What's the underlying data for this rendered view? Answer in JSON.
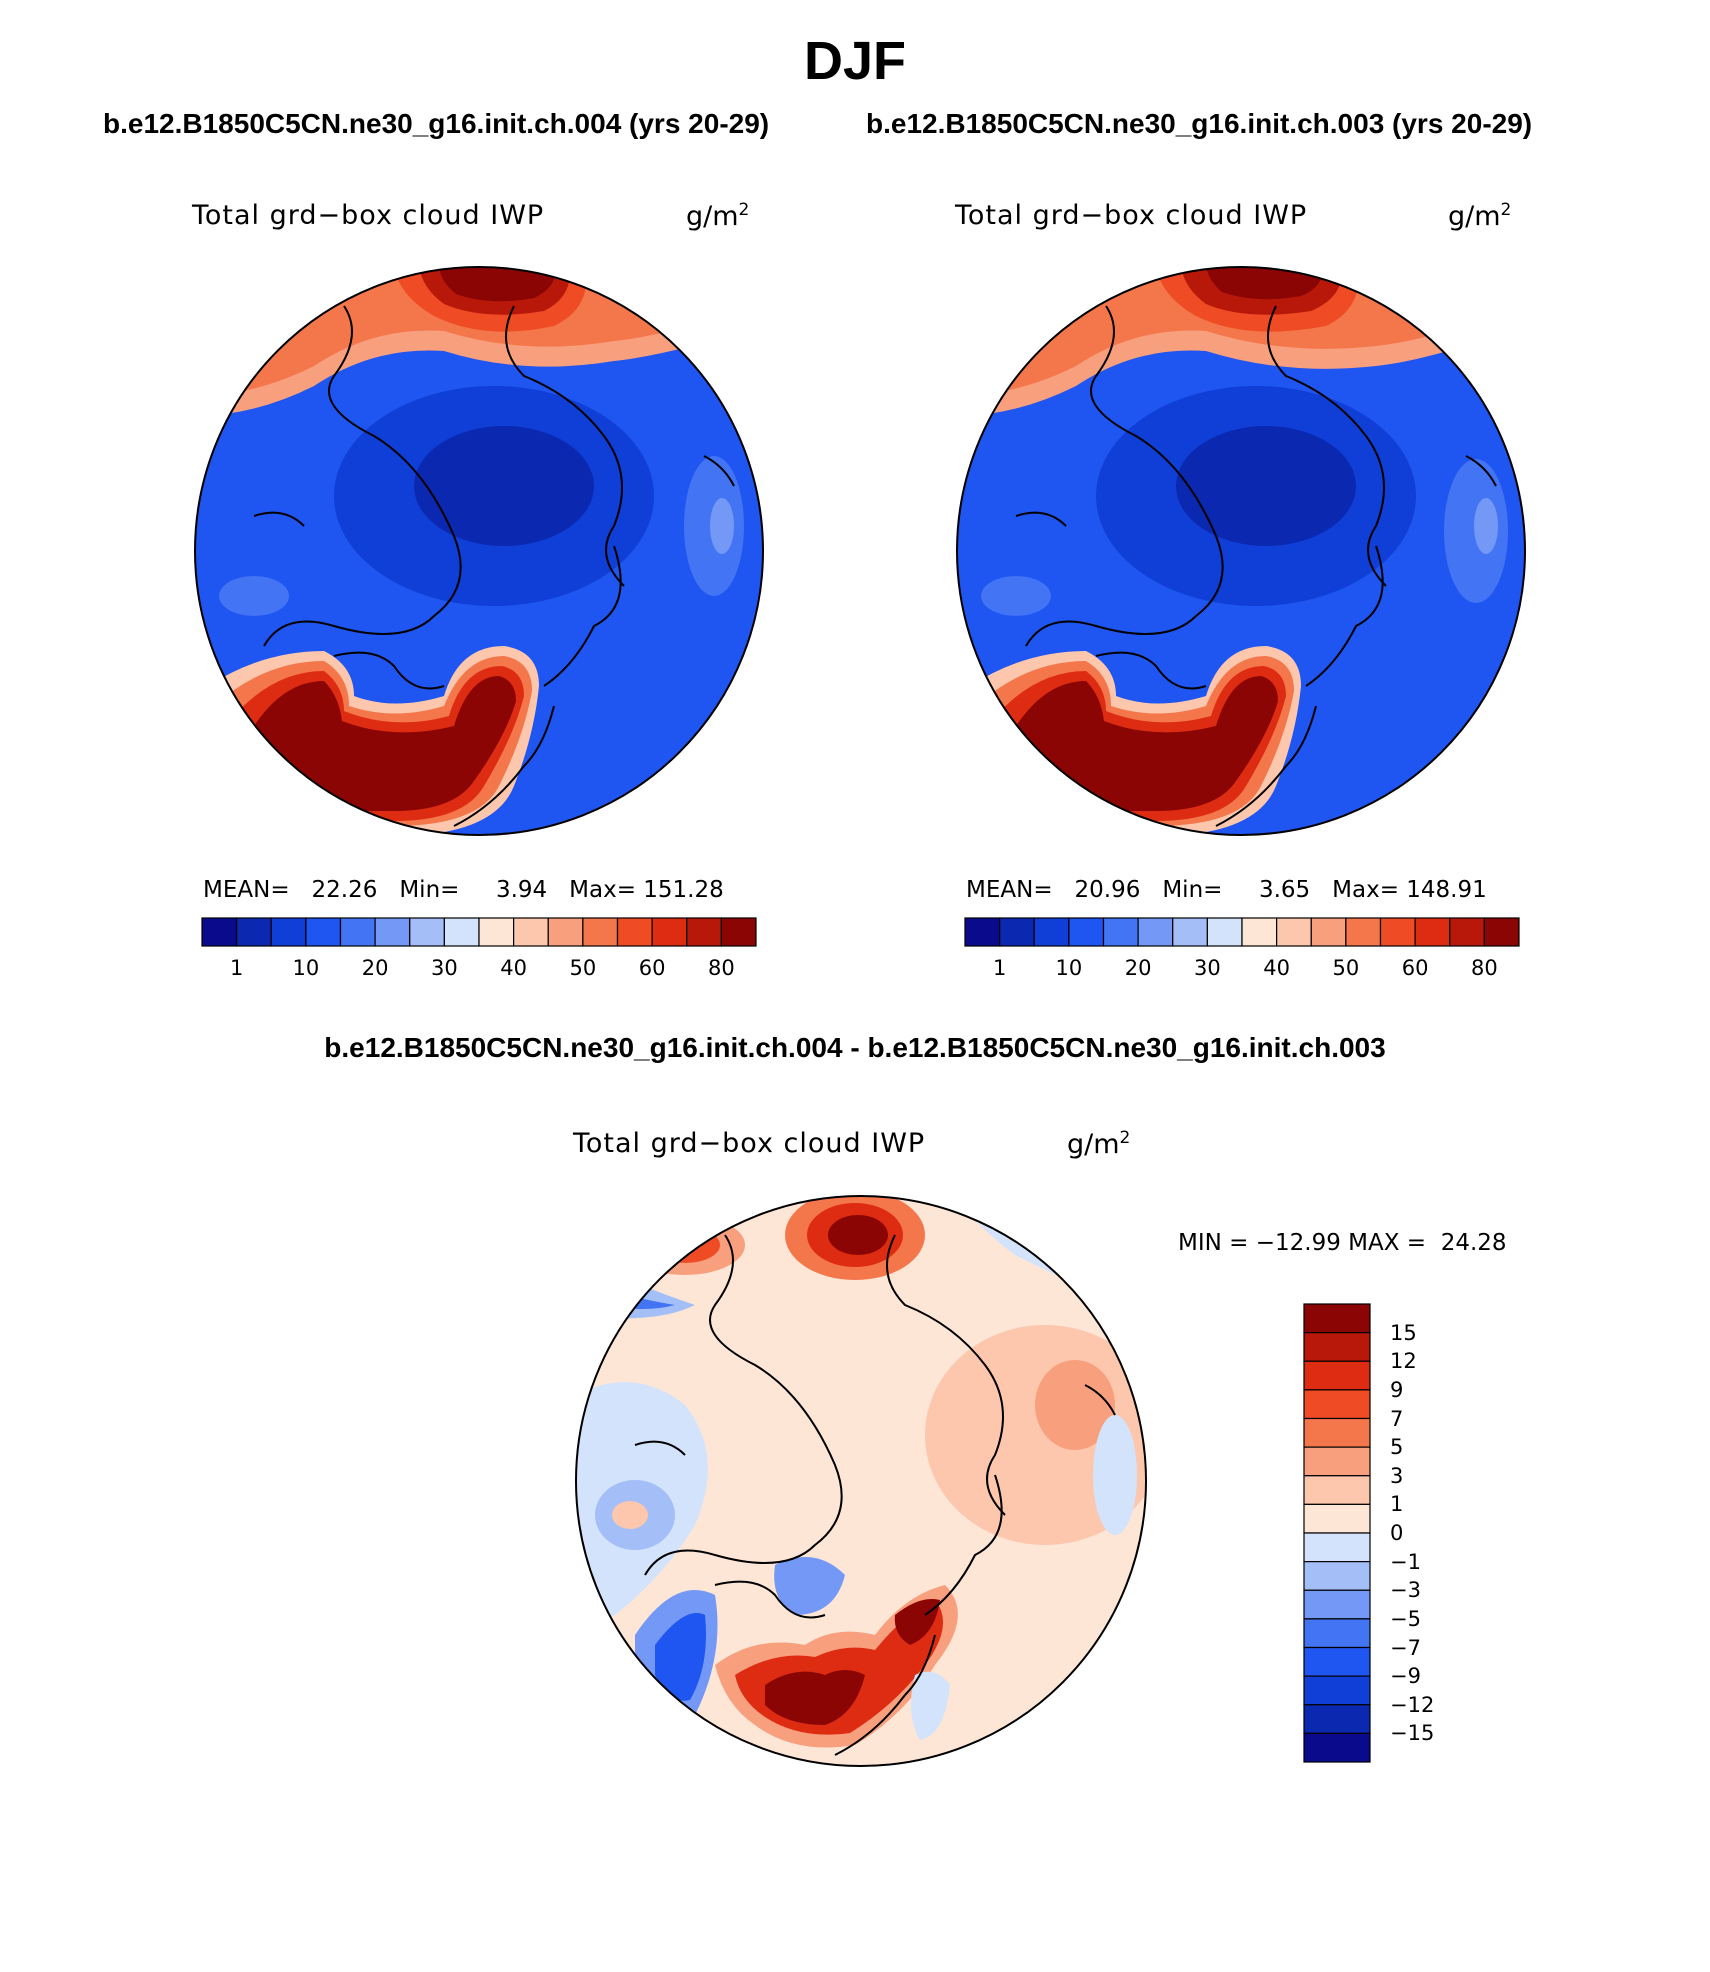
{
  "title": "DJF",
  "panels": [
    {
      "case_label": "b.e12.B1850C5CN.ne30_g16.init.ch.004 (yrs 20-29)",
      "variable": "Total grd−box cloud IWP",
      "units": "g/m",
      "units_exp": "2",
      "stats": {
        "mean_label": "MEAN=",
        "mean": "22.26",
        "min_label": "Min=",
        "min": "3.94",
        "max_label": "Max=",
        "max": "151.28"
      }
    },
    {
      "case_label": "b.e12.B1850C5CN.ne30_g16.init.ch.003 (yrs 20-29)",
      "variable": "Total grd−box cloud IWP",
      "units": "g/m",
      "units_exp": "2",
      "stats": {
        "mean_label": "MEAN=",
        "mean": "20.96",
        "min_label": "Min=",
        "min": "3.65",
        "max_label": "Max=",
        "max": "148.91"
      }
    }
  ],
  "diff": {
    "title": "b.e12.B1850C5CN.ne30_g16.init.ch.004 - b.e12.B1850C5CN.ne30_g16.init.ch.003",
    "variable": "Total grd−box cloud IWP",
    "units": "g/m",
    "units_exp": "2",
    "min_max_text": "MIN = −12.99 MAX =  24.28"
  },
  "colorbar_abs": {
    "colors": [
      "#0a0a8c",
      "#0b28b0",
      "#0f3fd6",
      "#1f55f0",
      "#4274f4",
      "#7498f6",
      "#a4bff8",
      "#d2e3fb",
      "#fde6d6",
      "#fcc7ad",
      "#f89f7d",
      "#f4764b",
      "#ef4b24",
      "#de2c12",
      "#b7180a",
      "#8b0505"
    ],
    "tick_labels": [
      "1",
      "10",
      "20",
      "30",
      "40",
      "50",
      "60",
      "80"
    ]
  },
  "colorbar_diff": {
    "colors": [
      "#8b0505",
      "#b7180a",
      "#de2c12",
      "#ef4b24",
      "#f4764b",
      "#f89f7d",
      "#fcc7ad",
      "#fde6d6",
      "#d2e3fb",
      "#a4bff8",
      "#7498f6",
      "#4274f4",
      "#1f55f0",
      "#0f3fd6",
      "#0b28b0",
      "#0a0a8c"
    ],
    "tick_labels": [
      "15",
      "12",
      "9",
      "7",
      "5",
      "3",
      "1",
      "0",
      "−1",
      "−3",
      "−5",
      "−7",
      "−9",
      "−12",
      "−15"
    ]
  },
  "colors": {
    "coast": "#000000",
    "ocean_abs": "#1f55f0",
    "land_low": "#0f3fd6"
  }
}
